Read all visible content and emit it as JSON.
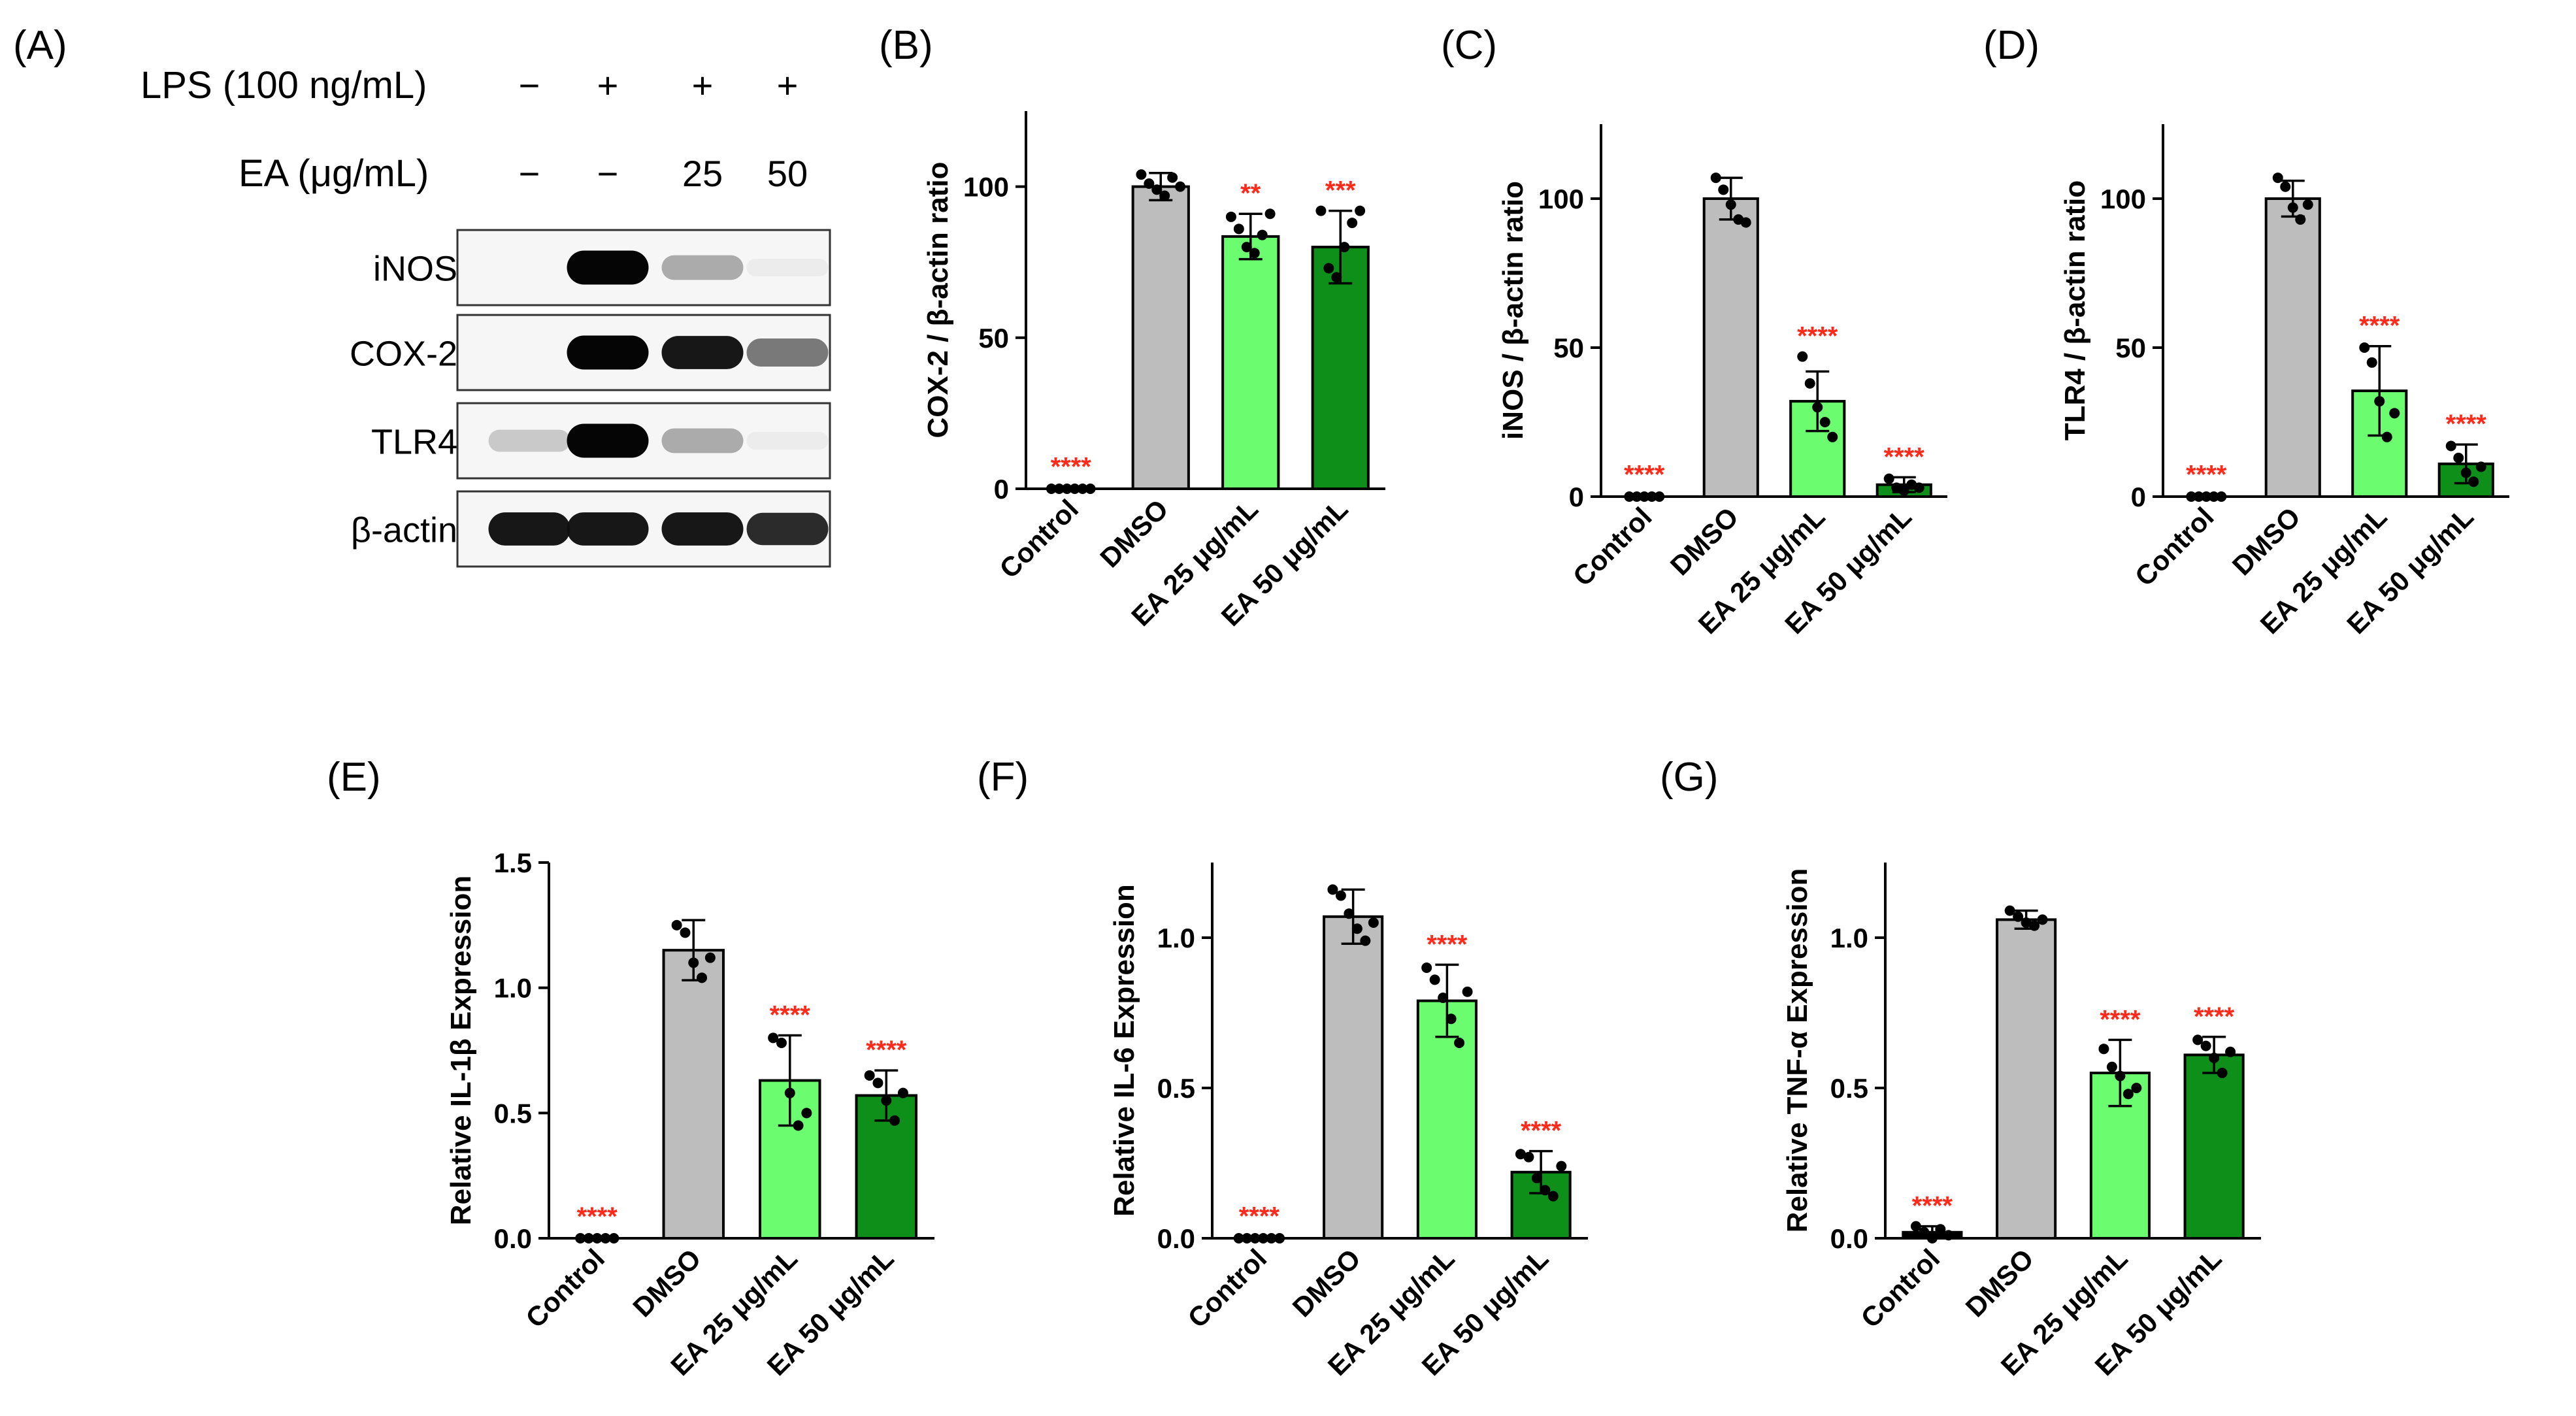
{
  "panel_letters": [
    "(A)",
    "(B)",
    "(C)",
    "(D)",
    "(E)",
    "(F)",
    "(G)"
  ],
  "colors": {
    "control": "#000000",
    "dmso": "#bdbdbd",
    "ea25": "#6bfd6f",
    "ea50": "#0e8f1a",
    "sig": "#ff2a1a",
    "ink": "#000000"
  },
  "blot": {
    "lps_label": "LPS (100 ng/mL)",
    "lps_signs": [
      "−",
      "+",
      "+",
      "+"
    ],
    "ea_label": "EA (μg/mL)",
    "ea_values": [
      "−",
      "−",
      "25",
      "50"
    ],
    "rows": [
      {
        "label": "iNOS",
        "intensities": [
          0.0,
          1.0,
          0.45,
          0.04
        ]
      },
      {
        "label": "COX-2",
        "intensities": [
          0.0,
          1.0,
          0.95,
          0.65
        ]
      },
      {
        "label": "TLR4",
        "intensities": [
          0.3,
          1.0,
          0.45,
          0.04
        ]
      },
      {
        "label": "β-actin",
        "intensities": [
          0.95,
          0.95,
          0.95,
          0.9
        ]
      }
    ]
  },
  "chart_data": [
    {
      "panel": "(B)",
      "type": "bar",
      "categories": [
        "Control",
        "DMSO",
        "EA 25 μg/mL",
        "EA 50 μg/mL"
      ],
      "values": [
        0,
        100,
        83.5,
        80
      ],
      "errors": [
        0.5,
        4.5,
        7.5,
        12
      ],
      "points": [
        [
          0,
          0,
          0,
          0,
          0,
          0
        ],
        [
          104,
          101,
          99,
          97,
          103,
          100
        ],
        [
          90,
          86,
          80,
          78,
          84,
          91
        ],
        [
          92,
          73,
          70,
          80,
          88,
          92
        ]
      ],
      "significance": [
        "****",
        "",
        "**",
        "***"
      ],
      "ylabel": "COX-2 / β-actin ratio",
      "ylim": [
        0,
        125
      ],
      "yticks": [
        0,
        50,
        100
      ]
    },
    {
      "panel": "(C)",
      "type": "bar",
      "categories": [
        "Control",
        "DMSO",
        "EA 25 μg/mL",
        "EA 50 μg/mL"
      ],
      "values": [
        0,
        100,
        32,
        4
      ],
      "errors": [
        0.5,
        7,
        10,
        2.5
      ],
      "points": [
        [
          0,
          0,
          0,
          0,
          0
        ],
        [
          107,
          103,
          98,
          93,
          92
        ],
        [
          47,
          38,
          30,
          25,
          20
        ],
        [
          6,
          3,
          2,
          4,
          3
        ]
      ],
      "significance": [
        "****",
        "",
        "****",
        "****"
      ],
      "ylabel": "iNOS / β-actin ratio",
      "ylim": [
        0,
        125
      ],
      "yticks": [
        0,
        50,
        100
      ]
    },
    {
      "panel": "(D)",
      "type": "bar",
      "categories": [
        "Control",
        "DMSO",
        "EA 25 μg/mL",
        "EA 50 μg/mL"
      ],
      "values": [
        0,
        100,
        35.5,
        11
      ],
      "errors": [
        0.5,
        6,
        15,
        6.5
      ],
      "points": [
        [
          0,
          0,
          0,
          0,
          0
        ],
        [
          107,
          104,
          97,
          93,
          98
        ],
        [
          50,
          45,
          32,
          20,
          28
        ],
        [
          17,
          13,
          8,
          5,
          10
        ]
      ],
      "significance": [
        "****",
        "",
        "****",
        "****"
      ],
      "ylabel": "TLR4 / β-actin ratio",
      "ylim": [
        0,
        125
      ],
      "yticks": [
        0,
        50,
        100
      ]
    },
    {
      "panel": "(E)",
      "type": "bar",
      "categories": [
        "Control",
        "DMSO",
        "EA 25 μg/mL",
        "EA 50 μg/mL"
      ],
      "values": [
        0,
        1.15,
        0.63,
        0.57
      ],
      "errors": [
        0.005,
        0.12,
        0.18,
        0.1
      ],
      "points": [
        [
          0,
          0,
          0,
          0,
          0
        ],
        [
          1.25,
          1.22,
          1.1,
          1.04,
          1.12
        ],
        [
          0.8,
          0.78,
          0.58,
          0.45,
          0.5
        ],
        [
          0.65,
          0.62,
          0.55,
          0.47,
          0.58
        ]
      ],
      "significance": [
        "****",
        "",
        "****",
        "****"
      ],
      "ylabel": "Relative IL-1β Expression",
      "ylim": [
        0,
        1.5
      ],
      "yticks": [
        0,
        0.5,
        1.0,
        1.5
      ]
    },
    {
      "panel": "(F)",
      "type": "bar",
      "categories": [
        "Control",
        "DMSO",
        "EA 25 μg/mL",
        "EA 50 μg/mL"
      ],
      "values": [
        0,
        1.07,
        0.79,
        0.22
      ],
      "errors": [
        0.005,
        0.09,
        0.12,
        0.07
      ],
      "points": [
        [
          0,
          0,
          0,
          0,
          0,
          0
        ],
        [
          1.16,
          1.14,
          1.08,
          1.03,
          0.99,
          1.05
        ],
        [
          0.9,
          0.86,
          0.8,
          0.73,
          0.65,
          0.82
        ],
        [
          0.28,
          0.27,
          0.2,
          0.16,
          0.14,
          0.24
        ]
      ],
      "significance": [
        "****",
        "",
        "****",
        "****"
      ],
      "ylabel": "Relative IL-6 Expression",
      "ylim": [
        0,
        1.25
      ],
      "yticks": [
        0,
        0.5,
        1.0
      ]
    },
    {
      "panel": "(G)",
      "type": "bar",
      "categories": [
        "Control",
        "DMSO",
        "EA 25 μg/mL",
        "EA 50 μg/mL"
      ],
      "values": [
        0.02,
        1.06,
        0.55,
        0.61
      ],
      "errors": [
        0.02,
        0.03,
        0.11,
        0.06
      ],
      "points": [
        [
          0.04,
          0.02,
          0.0,
          0.03,
          0.01
        ],
        [
          1.09,
          1.07,
          1.05,
          1.04,
          1.06
        ],
        [
          0.63,
          0.57,
          0.54,
          0.48,
          0.5
        ],
        [
          0.66,
          0.64,
          0.6,
          0.55,
          0.62
        ]
      ],
      "significance": [
        "****",
        "",
        "****",
        "****"
      ],
      "ylabel": "Relative TNF-α Expression",
      "ylim": [
        0,
        1.25
      ],
      "yticks": [
        0,
        0.5,
        1.0
      ]
    }
  ]
}
